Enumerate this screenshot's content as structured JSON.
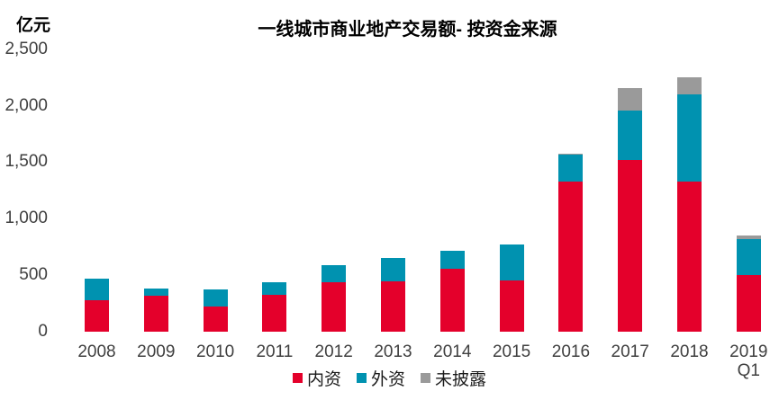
{
  "header": {
    "y_unit_label": "亿元"
  },
  "colors": {
    "domestic": "#e4002b",
    "foreign": "#0092b0",
    "undisclosed": "#9a9a9a",
    "axis_text": "#404040",
    "title_text": "#000000",
    "background": "#ffffff"
  },
  "chart_data": {
    "type": "bar",
    "stacked": true,
    "title": "一线城市商业地产交易额- 按资金来源",
    "ylabel": "亿元",
    "xlabel": "",
    "grid": false,
    "legend_position": "bottom",
    "ylim": [
      0,
      2500
    ],
    "ytick_step": 500,
    "yticks": [
      {
        "value": 0,
        "label": "0"
      },
      {
        "value": 500,
        "label": "500"
      },
      {
        "value": 1000,
        "label": "1,000"
      },
      {
        "value": 1500,
        "label": "1,500"
      },
      {
        "value": 2000,
        "label": "2,000"
      },
      {
        "value": 2500,
        "label": "2,500"
      }
    ],
    "categories": [
      "2008",
      "2009",
      "2010",
      "2011",
      "2012",
      "2013",
      "2014",
      "2015",
      "2016",
      "2017",
      "2018",
      "2019 Q1"
    ],
    "series": [
      {
        "name": "内资",
        "color": "#e4002b",
        "values": [
          275,
          315,
          220,
          330,
          440,
          445,
          560,
          450,
          1325,
          1520,
          1325,
          505
        ]
      },
      {
        "name": "外资",
        "color": "#0092b0",
        "values": [
          195,
          70,
          155,
          105,
          145,
          210,
          155,
          320,
          240,
          440,
          775,
          315
        ]
      },
      {
        "name": "未披露",
        "color": "#9a9a9a",
        "values": [
          0,
          0,
          0,
          0,
          0,
          0,
          0,
          0,
          10,
          195,
          155,
          30
        ]
      }
    ]
  }
}
